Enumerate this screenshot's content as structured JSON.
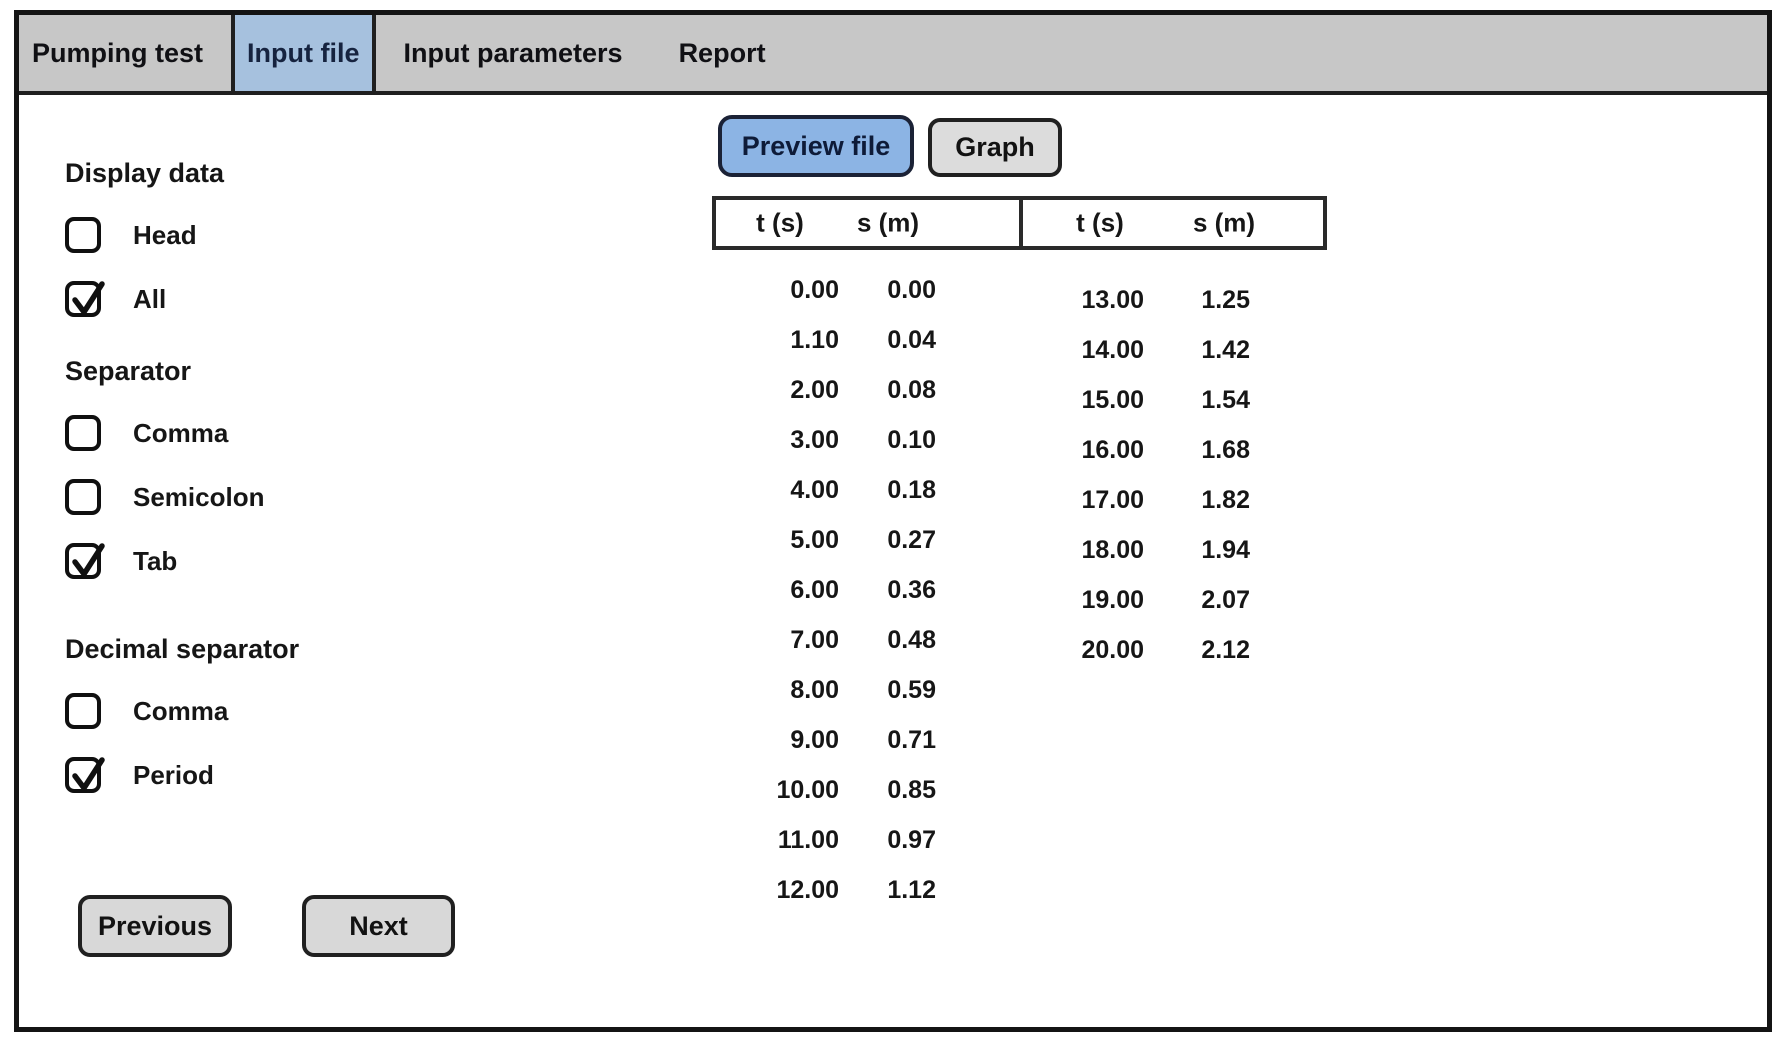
{
  "tabs": [
    {
      "label": "Pumping test",
      "active": false
    },
    {
      "label": "Input file",
      "active": true
    },
    {
      "label": "Input parameters",
      "active": false
    },
    {
      "label": "Report",
      "active": false
    }
  ],
  "sidebar": {
    "groups": [
      {
        "title": "Display data",
        "options": [
          {
            "label": "Head",
            "checked": false
          },
          {
            "label": "All",
            "checked": true
          }
        ]
      },
      {
        "title": "Separator",
        "options": [
          {
            "label": "Comma",
            "checked": false
          },
          {
            "label": "Semicolon",
            "checked": false
          },
          {
            "label": "Tab",
            "checked": true
          }
        ]
      },
      {
        "title": "Decimal separator",
        "options": [
          {
            "label": "Comma",
            "checked": false
          },
          {
            "label": "Period",
            "checked": true
          }
        ]
      }
    ],
    "previous_label": "Previous",
    "next_label": "Next"
  },
  "toolbar": {
    "preview_label": "Preview file",
    "graph_label": "Graph"
  },
  "table": {
    "col_headers": [
      "t (s)",
      "s (m)"
    ],
    "left_rows": [
      [
        "0.00",
        "0.00"
      ],
      [
        "1.10",
        "0.04"
      ],
      [
        "2.00",
        "0.08"
      ],
      [
        "3.00",
        "0.10"
      ],
      [
        "4.00",
        "0.18"
      ],
      [
        "5.00",
        "0.27"
      ],
      [
        "6.00",
        "0.36"
      ],
      [
        "7.00",
        "0.48"
      ],
      [
        "8.00",
        "0.59"
      ],
      [
        "9.00",
        "0.71"
      ],
      [
        "10.00",
        "0.85"
      ],
      [
        "11.00",
        "0.97"
      ],
      [
        "12.00",
        "1.12"
      ]
    ],
    "right_rows": [
      [
        "13.00",
        "1.25"
      ],
      [
        "14.00",
        "1.42"
      ],
      [
        "15.00",
        "1.54"
      ],
      [
        "16.00",
        "1.68"
      ],
      [
        "17.00",
        "1.82"
      ],
      [
        "18.00",
        "1.94"
      ],
      [
        "19.00",
        "2.07"
      ],
      [
        "20.00",
        "2.12"
      ]
    ]
  },
  "colors": {
    "tabbar_bg": "#c7c7c7",
    "tab_active_bg": "#a6c1de",
    "preview_button_bg": "#8cb4e4",
    "button_bg": "#d8d8d8",
    "border": "#141414",
    "text": "#161616",
    "active_text": "#16233f"
  }
}
